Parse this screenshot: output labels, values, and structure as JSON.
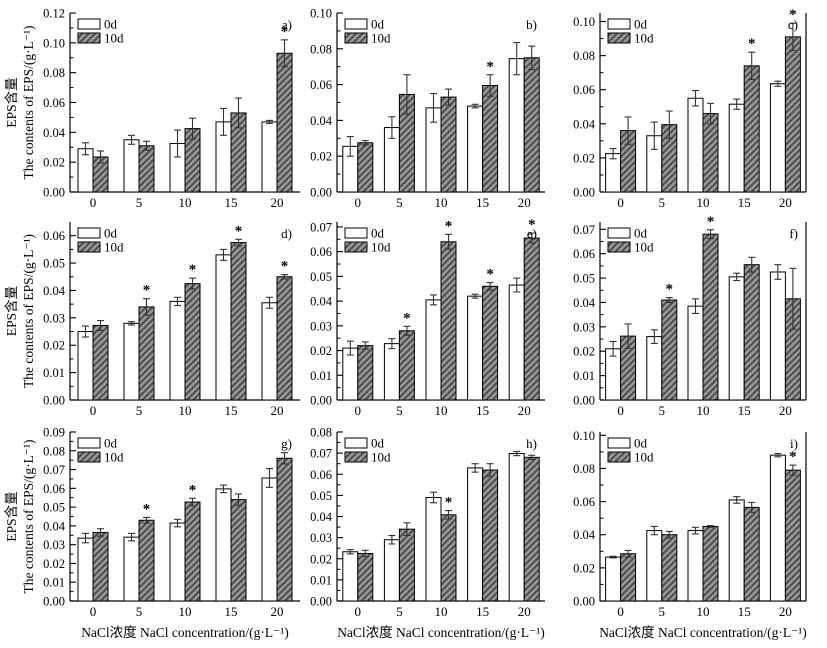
{
  "figure": {
    "xlabel": "NaCl浓度 NaCl concentration/(g·L⁻¹)",
    "ylabel_line1": "EPS含量",
    "ylabel_line2": "The contents of EPS/(g·L⁻¹)",
    "legend": [
      "0d",
      "10d"
    ],
    "colors": {
      "bar_0d_fill": "#ffffff",
      "stroke": "#000000",
      "hatch_base": "#999999",
      "hatch_stripe": "#4d4d4d",
      "error_bar": "#333333"
    }
  },
  "chart_data": [
    {
      "type": "bar",
      "panel_label": "a)",
      "categories": [
        "0",
        "5",
        "10",
        "15",
        "20"
      ],
      "ylim": [
        0,
        0.12
      ],
      "ytick_step": 0.02,
      "ytick_max": 0.12,
      "series": [
        {
          "name": "0d",
          "values": [
            0.029,
            0.035,
            0.0325,
            0.047,
            0.047
          ],
          "errors": [
            0.004,
            0.003,
            0.009,
            0.009,
            0.001
          ]
        },
        {
          "name": "10d",
          "values": [
            0.0235,
            0.031,
            0.0425,
            0.053,
            0.093
          ],
          "errors": [
            0.004,
            0.003,
            0.007,
            0.01,
            0.009
          ],
          "significant": [
            false,
            false,
            false,
            false,
            true
          ]
        }
      ]
    },
    {
      "type": "bar",
      "panel_label": "b)",
      "categories": [
        "0",
        "5",
        "10",
        "15",
        "20"
      ],
      "ylim": [
        0,
        0.1
      ],
      "ytick_step": 0.02,
      "ytick_max": 0.1,
      "series": [
        {
          "name": "0d",
          "values": [
            0.0255,
            0.036,
            0.047,
            0.048,
            0.0745
          ],
          "errors": [
            0.0055,
            0.006,
            0.008,
            0.001,
            0.009
          ]
        },
        {
          "name": "10d",
          "values": [
            0.0275,
            0.0545,
            0.053,
            0.0595,
            0.075
          ],
          "errors": [
            0.0012,
            0.011,
            0.0045,
            0.006,
            0.0065
          ],
          "significant": [
            false,
            false,
            false,
            true,
            false
          ]
        }
      ]
    },
    {
      "type": "bar",
      "panel_label": "c)",
      "categories": [
        "0",
        "5",
        "10",
        "15",
        "20"
      ],
      "ylim": [
        0,
        0.105
      ],
      "ytick_step": 0.02,
      "ytick_max": 0.1,
      "series": [
        {
          "name": "0d",
          "values": [
            0.0225,
            0.033,
            0.055,
            0.0515,
            0.0635
          ],
          "errors": [
            0.003,
            0.008,
            0.0045,
            0.003,
            0.0015
          ]
        },
        {
          "name": "10d",
          "values": [
            0.036,
            0.0395,
            0.046,
            0.074,
            0.091
          ],
          "errors": [
            0.008,
            0.008,
            0.006,
            0.008,
            0.008
          ],
          "significant": [
            false,
            false,
            false,
            true,
            true
          ]
        }
      ]
    },
    {
      "type": "bar",
      "panel_label": "d)",
      "categories": [
        "0",
        "5",
        "10",
        "15",
        "20"
      ],
      "ylim": [
        0,
        0.065
      ],
      "ytick_step": 0.01,
      "ytick_max": 0.06,
      "series": [
        {
          "name": "0d",
          "values": [
            0.025,
            0.028,
            0.036,
            0.053,
            0.0355
          ],
          "errors": [
            0.002,
            0.0006,
            0.0015,
            0.002,
            0.002
          ]
        },
        {
          "name": "10d",
          "values": [
            0.0272,
            0.034,
            0.0425,
            0.0575,
            0.045
          ],
          "errors": [
            0.0018,
            0.003,
            0.002,
            0.0012,
            0.0008
          ],
          "significant": [
            false,
            true,
            true,
            true,
            true
          ]
        }
      ]
    },
    {
      "type": "bar",
      "panel_label": "e)",
      "categories": [
        "0",
        "5",
        "10",
        "15",
        "20"
      ],
      "ylim": [
        0,
        0.072
      ],
      "ytick_step": 0.01,
      "ytick_max": 0.07,
      "series": [
        {
          "name": "0d",
          "values": [
            0.021,
            0.0228,
            0.0405,
            0.042,
            0.0465
          ],
          "errors": [
            0.0028,
            0.002,
            0.002,
            0.0008,
            0.0028
          ]
        },
        {
          "name": "10d",
          "values": [
            0.022,
            0.028,
            0.064,
            0.046,
            0.0655
          ],
          "errors": [
            0.0015,
            0.0018,
            0.003,
            0.0015,
            0.002
          ],
          "significant": [
            false,
            true,
            true,
            true,
            true
          ]
        }
      ]
    },
    {
      "type": "bar",
      "panel_label": "f)",
      "categories": [
        "0",
        "5",
        "10",
        "15",
        "20"
      ],
      "ylim": [
        0,
        0.073
      ],
      "ytick_step": 0.01,
      "ytick_max": 0.07,
      "series": [
        {
          "name": "0d",
          "values": [
            0.021,
            0.026,
            0.0385,
            0.0505,
            0.0525
          ],
          "errors": [
            0.003,
            0.0028,
            0.003,
            0.0015,
            0.003
          ]
        },
        {
          "name": "10d",
          "values": [
            0.0262,
            0.041,
            0.068,
            0.0555,
            0.0415
          ],
          "errors": [
            0.005,
            0.001,
            0.0018,
            0.003,
            0.0125
          ],
          "significant": [
            false,
            true,
            true,
            false,
            false
          ]
        }
      ]
    },
    {
      "type": "bar",
      "panel_label": "g)",
      "categories": [
        "0",
        "5",
        "10",
        "15",
        "20"
      ],
      "ylim": [
        0,
        0.09
      ],
      "ytick_step": 0.01,
      "ytick_max": 0.09,
      "series": [
        {
          "name": "0d",
          "values": [
            0.0335,
            0.034,
            0.0415,
            0.0597,
            0.0655
          ],
          "errors": [
            0.0025,
            0.002,
            0.002,
            0.002,
            0.005
          ]
        },
        {
          "name": "10d",
          "values": [
            0.0365,
            0.043,
            0.0527,
            0.054,
            0.076
          ],
          "errors": [
            0.002,
            0.0015,
            0.002,
            0.003,
            0.003
          ],
          "significant": [
            false,
            true,
            true,
            false,
            false
          ]
        }
      ]
    },
    {
      "type": "bar",
      "panel_label": "h)",
      "categories": [
        "0",
        "5",
        "10",
        "15",
        "20"
      ],
      "ylim": [
        0,
        0.08
      ],
      "ytick_step": 0.01,
      "ytick_max": 0.08,
      "series": [
        {
          "name": "0d",
          "values": [
            0.0233,
            0.029,
            0.049,
            0.063,
            0.0698
          ],
          "errors": [
            0.001,
            0.002,
            0.0025,
            0.002,
            0.001
          ]
        },
        {
          "name": "10d",
          "values": [
            0.0225,
            0.034,
            0.0408,
            0.062,
            0.068
          ],
          "errors": [
            0.0015,
            0.003,
            0.002,
            0.003,
            0.001
          ],
          "significant": [
            false,
            false,
            true,
            false,
            false
          ]
        }
      ]
    },
    {
      "type": "bar",
      "panel_label": "i)",
      "categories": [
        "0",
        "5",
        "10",
        "15",
        "20"
      ],
      "ylim": [
        0,
        0.102
      ],
      "ytick_step": 0.02,
      "ytick_max": 0.1,
      "series": [
        {
          "name": "0d",
          "values": [
            0.0265,
            0.0425,
            0.0425,
            0.061,
            0.088
          ],
          "errors": [
            0.0005,
            0.0025,
            0.002,
            0.002,
            0.001
          ]
        },
        {
          "name": "10d",
          "values": [
            0.0285,
            0.04,
            0.045,
            0.0565,
            0.079
          ],
          "errors": [
            0.002,
            0.002,
            0.0005,
            0.003,
            0.003
          ],
          "significant": [
            false,
            false,
            false,
            false,
            true
          ]
        }
      ]
    }
  ]
}
